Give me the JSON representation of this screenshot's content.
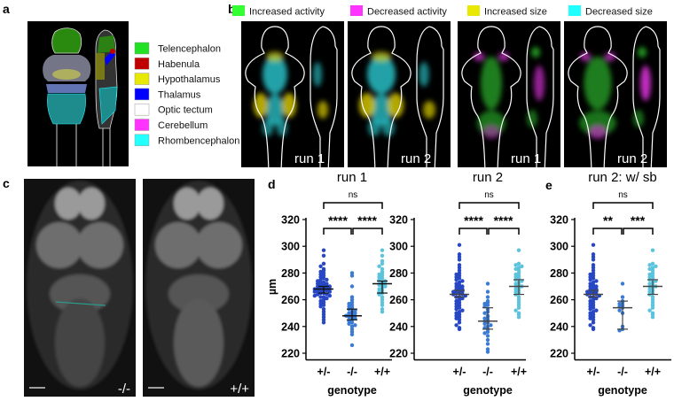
{
  "panels": {
    "a": {
      "label": "a",
      "legend": [
        {
          "label": "Telencephalon",
          "color": "#22e022"
        },
        {
          "label": "Habenula",
          "color": "#c00000"
        },
        {
          "label": "Hypothalamus",
          "color": "#e8e800"
        },
        {
          "label": "Thalamus",
          "color": "#0000ff"
        },
        {
          "label": "Optic tectum",
          "color": "#ffffff"
        },
        {
          "label": "Cerebellum",
          "color": "#ff33ff"
        },
        {
          "label": "Rhombencephalon",
          "color": "#22ffff"
        }
      ]
    },
    "b": {
      "label": "b",
      "legend": [
        {
          "label": "Increased activity",
          "color": "#33ff33"
        },
        {
          "label": "Decreased activity",
          "color": "#ff33ff"
        },
        {
          "label": "Increased size",
          "color": "#e8e800"
        },
        {
          "label": "Decreased size",
          "color": "#22ffff"
        }
      ],
      "images": [
        {
          "run_label": "run 1",
          "map": "size"
        },
        {
          "run_label": "run 2",
          "map": "size"
        },
        {
          "run_label": "run 1",
          "map": "activity"
        },
        {
          "run_label": "run 2",
          "map": "activity"
        }
      ]
    },
    "c": {
      "label": "c",
      "images": [
        {
          "genotype": "-/-"
        },
        {
          "genotype": "+/+"
        }
      ]
    },
    "d": {
      "label": "d"
    },
    "e": {
      "label": "e"
    }
  },
  "chart_data": [
    {
      "type": "scatter",
      "panel": "d",
      "title": "run 1",
      "xlabel": "genotype",
      "ylabel": "µm",
      "categories": [
        "+/-",
        "-/-",
        "+/+"
      ],
      "ylim": [
        215,
        320
      ],
      "yticks": [
        220,
        240,
        260,
        280,
        300,
        320
      ],
      "colors": [
        "#2747c4",
        "#3b7bd4",
        "#5cc3dc"
      ],
      "series": [
        {
          "values": [
            297,
            293,
            287,
            285,
            283,
            282,
            281,
            280,
            279,
            278,
            277,
            276,
            275,
            275,
            274,
            273,
            273,
            272,
            272,
            271,
            271,
            270,
            270,
            270,
            269,
            269,
            269,
            268,
            268,
            268,
            267,
            267,
            267,
            266,
            266,
            266,
            265,
            265,
            264,
            264,
            263,
            263,
            262,
            262,
            261,
            260,
            259,
            258,
            257,
            256,
            255,
            253,
            251,
            249,
            247,
            245,
            243
          ],
          "median": 268,
          "error": [
            265,
            270
          ]
        },
        {
          "values": [
            280,
            278,
            270,
            262,
            260,
            258,
            257,
            256,
            255,
            254,
            253,
            252,
            251,
            250,
            250,
            249,
            249,
            248,
            248,
            247,
            247,
            246,
            245,
            244,
            243,
            242,
            241,
            240,
            238,
            236,
            234,
            226
          ],
          "median": 248,
          "error": [
            245,
            253
          ]
        },
        {
          "values": [
            297,
            293,
            289,
            287,
            285,
            283,
            281,
            280,
            279,
            278,
            277,
            276,
            275,
            274,
            273,
            272,
            272,
            271,
            271,
            270,
            269,
            268,
            267,
            266,
            265,
            264,
            262,
            260,
            258,
            256,
            253,
            251
          ],
          "median": 272,
          "error": [
            265,
            274
          ]
        }
      ],
      "significance": {
        "outer": "ns",
        "left": "****",
        "right": "****"
      }
    },
    {
      "type": "scatter",
      "panel": "d",
      "title": "run 2",
      "xlabel": "genotype",
      "categories": [
        "+/-",
        "-/-",
        "+/+"
      ],
      "ylim": [
        215,
        320
      ],
      "yticks": [
        220,
        240,
        260,
        280,
        300,
        320
      ],
      "colors": [
        "#2747c4",
        "#3b7bd4",
        "#5cc3dc"
      ],
      "series": [
        {
          "values": [
            301,
            294,
            292,
            290,
            286,
            284,
            282,
            280,
            279,
            278,
            277,
            276,
            275,
            274,
            273,
            272,
            271,
            270,
            270,
            269,
            268,
            268,
            267,
            267,
            266,
            266,
            265,
            265,
            264,
            264,
            263,
            262,
            262,
            261,
            260,
            259,
            258,
            257,
            256,
            255,
            254,
            253,
            252,
            251,
            250,
            249,
            248,
            247,
            246,
            245,
            243,
            241,
            239,
            238
          ],
          "median": 264,
          "error": [
            262,
            267
          ]
        },
        {
          "values": [
            272,
            266,
            262,
            259,
            258,
            257,
            256,
            255,
            253,
            251,
            250,
            248,
            247,
            246,
            245,
            244,
            243,
            242,
            241,
            240,
            239,
            238,
            236,
            235,
            233,
            230,
            227,
            223,
            221
          ],
          "median": 244,
          "error": [
            238,
            254
          ]
        },
        {
          "values": [
            297,
            287,
            286,
            285,
            284,
            283,
            282,
            280,
            279,
            278,
            277,
            276,
            275,
            274,
            273,
            272,
            271,
            270,
            270,
            269,
            268,
            267,
            266,
            265,
            264,
            262,
            260,
            258,
            256,
            254,
            252,
            250,
            249,
            247
          ],
          "median": 270,
          "error": [
            264,
            275
          ]
        }
      ],
      "significance": {
        "outer": "ns",
        "left": "****",
        "right": "****"
      }
    },
    {
      "type": "scatter",
      "panel": "e",
      "title": "run 2: w/ sb",
      "xlabel": "genotype",
      "categories": [
        "+/-",
        "-/-",
        "+/+"
      ],
      "ylim": [
        215,
        320
      ],
      "yticks": [
        220,
        240,
        260,
        280,
        300,
        320
      ],
      "colors": [
        "#2747c4",
        "#3b7bd4",
        "#5cc3dc"
      ],
      "series": [
        {
          "values": [
            301,
            294,
            292,
            290,
            286,
            284,
            282,
            280,
            279,
            278,
            277,
            276,
            275,
            274,
            273,
            272,
            271,
            270,
            270,
            269,
            268,
            268,
            267,
            267,
            266,
            266,
            265,
            265,
            264,
            264,
            263,
            262,
            262,
            261,
            260,
            259,
            258,
            257,
            256,
            255,
            254,
            253,
            252,
            251,
            250,
            249,
            248,
            247,
            246,
            245,
            243,
            241,
            239,
            238
          ],
          "median": 264,
          "error": [
            262,
            267
          ]
        },
        {
          "values": [
            272,
            262,
            259,
            258,
            257,
            256,
            255,
            254,
            252,
            250,
            240,
            238,
            237
          ],
          "median": 254,
          "error": [
            238,
            259
          ]
        },
        {
          "values": [
            297,
            287,
            286,
            285,
            284,
            283,
            282,
            280,
            279,
            278,
            277,
            276,
            275,
            274,
            273,
            272,
            271,
            270,
            270,
            269,
            268,
            267,
            266,
            265,
            264,
            262,
            260,
            258,
            256,
            254,
            252,
            250,
            249,
            247
          ],
          "median": 270,
          "error": [
            264,
            275
          ]
        }
      ],
      "significance": {
        "outer": "ns",
        "left": "**",
        "right": "***"
      }
    }
  ]
}
